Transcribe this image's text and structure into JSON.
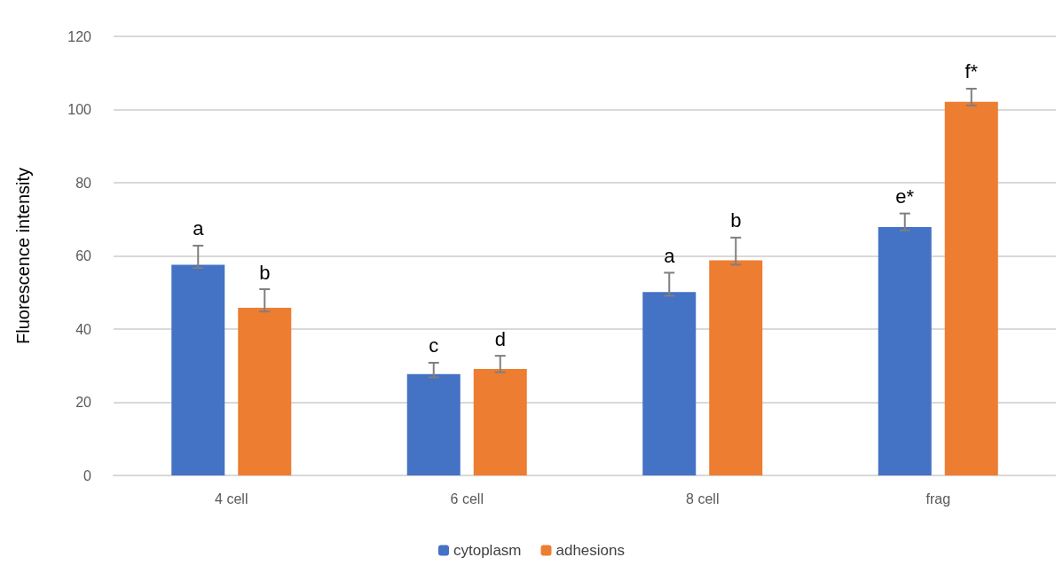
{
  "chart_data": {
    "type": "bar",
    "ylabel": "Fluorescence intensity",
    "categories": [
      "4 cell",
      "6 cell",
      "8 cell",
      "frag"
    ],
    "series": [
      {
        "name": "cytoplasm",
        "color": "#4472c4",
        "values": [
          57.6,
          27.7,
          50.1,
          67.9
        ],
        "errors": [
          [
            56.7,
            62.8
          ],
          [
            26.8,
            30.8
          ],
          [
            49.1,
            55.4
          ],
          [
            67.0,
            71.6
          ]
        ],
        "value_labels": [
          "a",
          "c",
          "a",
          "e*"
        ]
      },
      {
        "name": "adhesions",
        "color": "#ed7d31",
        "values": [
          45.8,
          29.1,
          58.8,
          102.1
        ],
        "errors": [
          [
            44.8,
            50.9
          ],
          [
            28.2,
            32.7
          ],
          [
            57.6,
            65.0
          ],
          [
            101.1,
            105.7
          ]
        ],
        "value_labels": [
          "b",
          "d",
          "b",
          "f*"
        ]
      }
    ],
    "ylim": [
      0,
      120
    ],
    "yticks": [
      0,
      20,
      40,
      60,
      80,
      100,
      120
    ],
    "grid": "y",
    "legend": "bottom"
  }
}
